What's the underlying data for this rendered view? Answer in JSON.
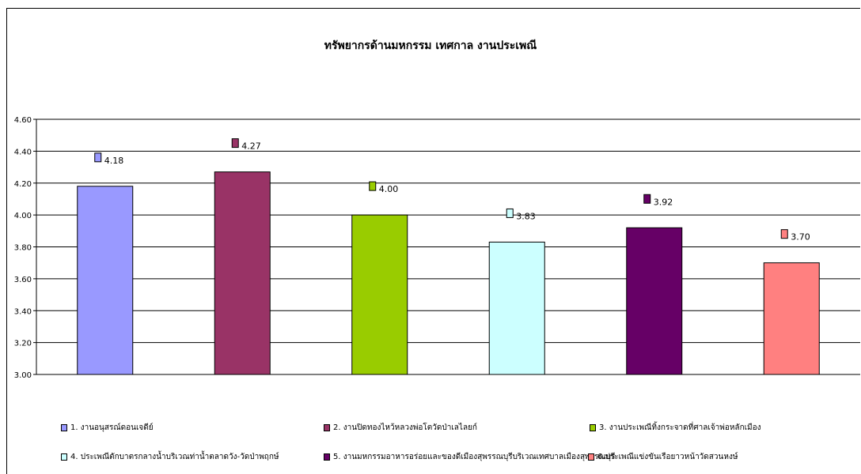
{
  "chart_data": {
    "type": "bar",
    "title": "ทรัพยากรด้านมหกรรม เทศกาล งานประเพณี",
    "xlabel": "",
    "ylabel": "",
    "ylim": [
      3.0,
      4.6
    ],
    "y_ticks": [
      "3.00",
      "3.20",
      "3.40",
      "3.60",
      "3.80",
      "4.00",
      "4.20",
      "4.40",
      "4.60"
    ],
    "grid": true,
    "legend_position": "bottom",
    "series": [
      {
        "name": "1. งานอนุสรณ์ดอนเจดีย์",
        "value": 4.18,
        "label": "4.18",
        "color": "#9999ff"
      },
      {
        "name": "2. งานปิดทองไหว้หลวงพ่อโตวัดป่าเลไลยก์",
        "value": 4.27,
        "label": "4.27",
        "color": "#993366"
      },
      {
        "name": "3. งานประเพณีทิ้งกระจาดที่ศาลเจ้าพ่อหลักเมือง",
        "value": 4.0,
        "label": "4.00",
        "color": "#99cc00"
      },
      {
        "name": "4. ประเพณีตักบาตรกลางน้ำบริเวณท่าน้ำตลาดวัง-วัดป่าพฤกษ์",
        "value": 3.83,
        "label": "3.83",
        "color": "#ccffff"
      },
      {
        "name": "5. งานมหกรรมอาหารอร่อยและของดีเมืองสุพรรณบุรีบริเวณเทศบาลเมืองสุพรรณบุรี",
        "value": 3.92,
        "label": "3.92",
        "color": "#660066"
      },
      {
        "name": "6.ประเพณีแข่งขันเรือยาวหน้าวัดสวนหงษ์",
        "value": 3.7,
        "label": "3.70",
        "color": "#ff8080"
      }
    ]
  }
}
